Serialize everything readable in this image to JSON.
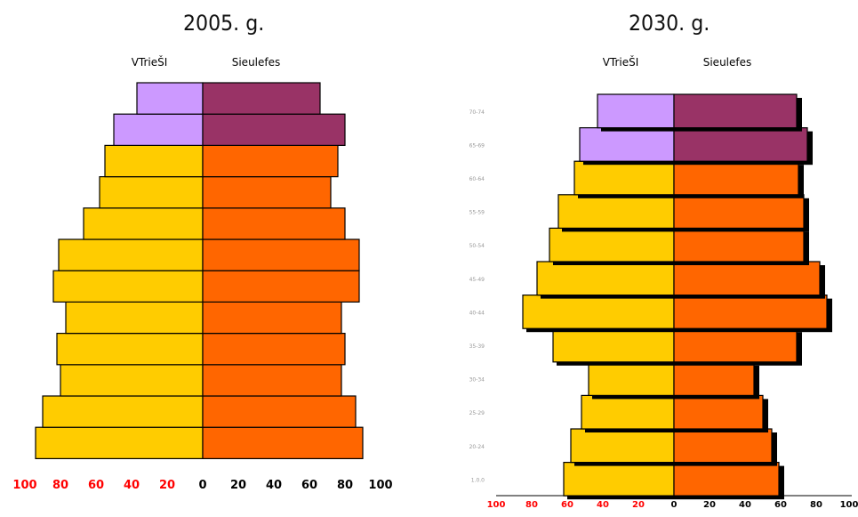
{
  "chart_data": [
    {
      "type": "bar",
      "orientation": "horizontal",
      "subtype": "population-pyramid",
      "title": "2005. g.",
      "left_label": "VTrieŠI",
      "right_label": "Sieulefes",
      "x_ticks_left": [
        "100",
        "80",
        "60",
        "40",
        "20"
      ],
      "x_ticks_right": [
        "0",
        "20",
        "40",
        "60",
        "80",
        "100"
      ],
      "xlim": [
        -100,
        100
      ],
      "categories": [
        "",
        "",
        "",
        "",
        "",
        "",
        "",
        "",
        "",
        "",
        "",
        ""
      ],
      "series": [
        {
          "side": "left",
          "values": [
            94,
            90,
            80,
            82,
            77,
            84,
            81,
            67,
            58,
            55,
            50,
            37
          ]
        },
        {
          "side": "right",
          "values": [
            90,
            86,
            78,
            80,
            78,
            88,
            88,
            80,
            72,
            76,
            80,
            66
          ]
        }
      ],
      "highlighted_top_rows": 2,
      "colors": {
        "left_main": "#ffcc00",
        "left_top": "#cc99ff",
        "right_main": "#ff6600",
        "right_top": "#993366",
        "tick_left": "#ff0000",
        "tick_right": "#000000"
      }
    },
    {
      "type": "bar",
      "orientation": "horizontal",
      "subtype": "population-pyramid",
      "title": "2030. g.",
      "left_label": "VTrieŠI",
      "right_label": "Sieulefes",
      "x_ticks_left": [
        "100",
        "80",
        "60",
        "40",
        "20"
      ],
      "x_ticks_right": [
        "0",
        "20",
        "40",
        "60",
        "80",
        "100"
      ],
      "xlim": [
        -100,
        100
      ],
      "categories": [
        "1.0.0",
        "20-24",
        "25-29",
        "30-34",
        "35-39",
        "40-44",
        "45-49",
        "50-54",
        "55-59",
        "60-64",
        "65-69",
        "70-74"
      ],
      "series": [
        {
          "side": "left",
          "values": [
            62,
            58,
            52,
            48,
            68,
            85,
            77,
            70,
            65,
            56,
            53,
            43
          ]
        },
        {
          "side": "right",
          "values": [
            59,
            55,
            50,
            45,
            69,
            86,
            82,
            73,
            73,
            70,
            75,
            69
          ]
        }
      ],
      "shadow": true,
      "highlighted_top_rows": 2,
      "colors": {
        "left_main": "#ffcc00",
        "left_top": "#cc99ff",
        "right_main": "#ff6600",
        "right_top": "#993366",
        "tick_left": "#ff0000",
        "tick_right": "#000000",
        "category_label": "#999999"
      }
    }
  ]
}
